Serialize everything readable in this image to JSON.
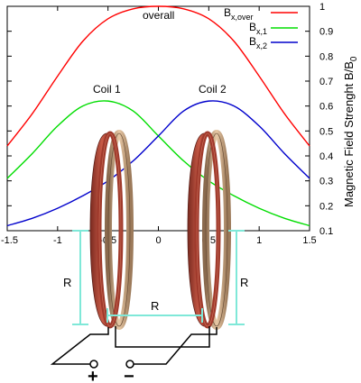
{
  "chart_data": {
    "type": "line",
    "ylabel": "Magnetic Field Strenght B/B",
    "ylabel_sub": "0",
    "xlim": [
      -1.5,
      1.5
    ],
    "ylim": [
      0.1,
      1.0
    ],
    "x_ticks": [
      "-1.5",
      "-1",
      "-0.5",
      "0",
      "0.5",
      "1",
      "1.5"
    ],
    "y_ticks": [
      "0.1",
      "0.2",
      "0.3",
      "0.4",
      "0.5",
      "0.6",
      "0.7",
      "0.8",
      "0.9",
      "1"
    ],
    "grid": false,
    "legend_position": "top-right",
    "series": [
      {
        "key": "overall",
        "legend_main": "B",
        "legend_sub": "x,over",
        "color": "#ff0000",
        "x": [
          -1.5,
          -1.25,
          -1,
          -0.75,
          -0.5,
          -0.25,
          0,
          0.25,
          0.5,
          0.75,
          1,
          1.25,
          1.5
        ],
        "y": [
          0.44,
          0.57,
          0.72,
          0.86,
          0.95,
          0.99,
          1.0,
          0.99,
          0.95,
          0.86,
          0.72,
          0.57,
          0.44
        ]
      },
      {
        "key": "coil1",
        "legend_main": "B",
        "legend_sub": "x,1",
        "color": "#00dd00",
        "x": [
          -1.5,
          -1.25,
          -1,
          -0.75,
          -0.5,
          -0.25,
          0,
          0.25,
          0.5,
          0.75,
          1,
          1.25,
          1.5
        ],
        "y": [
          0.31,
          0.41,
          0.52,
          0.6,
          0.62,
          0.58,
          0.48,
          0.38,
          0.3,
          0.24,
          0.19,
          0.15,
          0.12
        ]
      },
      {
        "key": "coil2",
        "legend_main": "B",
        "legend_sub": "x,2",
        "color": "#0000cc",
        "x": [
          -1.5,
          -1.25,
          -1,
          -0.75,
          -0.5,
          -0.25,
          0,
          0.25,
          0.5,
          0.75,
          1,
          1.25,
          1.5
        ],
        "y": [
          0.12,
          0.15,
          0.19,
          0.24,
          0.3,
          0.38,
          0.48,
          0.58,
          0.62,
          0.6,
          0.52,
          0.41,
          0.31
        ]
      }
    ],
    "annotations": {
      "overall": "overall",
      "coil1": "Coil 1",
      "coil2": "Coil 2"
    }
  },
  "diagram": {
    "radius_label_left": "R",
    "radius_label_right": "R",
    "separation_label": "R",
    "terminal_plus": "+",
    "terminal_minus": "−",
    "dimension_color": "#7fe8d8",
    "coil_copper": "#b5483a",
    "coil_bronze": "#d7b48f"
  }
}
